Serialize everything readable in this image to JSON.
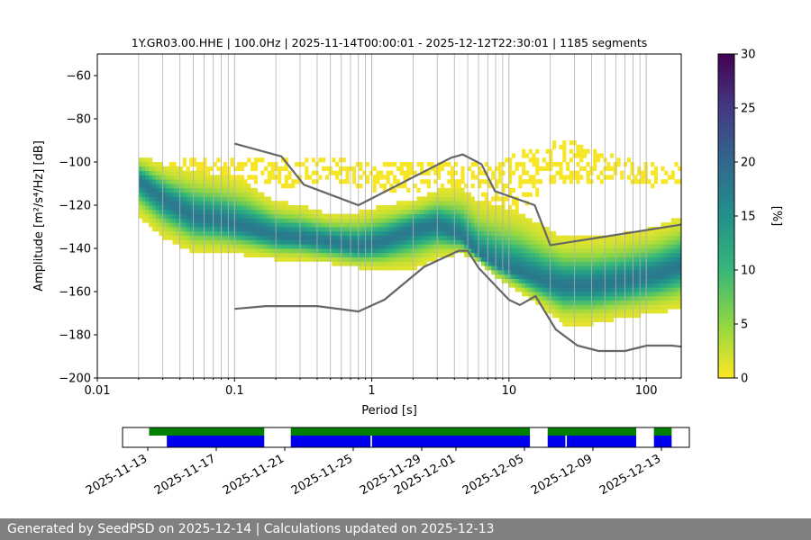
{
  "chart_data": [
    {
      "type": "heatmap",
      "title": "1Y.GR03.00.HHE | 100.0Hz | 2025-11-14T00:00:01 - 2025-12-12T22:30:01 | 1185 segments",
      "xlabel": "Period [s]",
      "ylabel": "Amplitude [m²/s⁴/Hz] [dB]",
      "x_scale": "log",
      "xlim": [
        0.01,
        180
      ],
      "ylim": [
        -200,
        -50
      ],
      "x_ticks": [
        0.01,
        0.1,
        1,
        10,
        100
      ],
      "x_tick_labels": [
        "0.01",
        "0.1",
        "1",
        "10",
        "100"
      ],
      "y_ticks": [
        -200,
        -180,
        -160,
        -140,
        -120,
        -100,
        -80,
        -60
      ],
      "y_tick_labels": [
        "−200",
        "−180",
        "−160",
        "−140",
        "−120",
        "−100",
        "−80",
        "−60"
      ],
      "grid": "x-major-and-minor",
      "colorbar": {
        "label": "[%]",
        "range": [
          0,
          30
        ],
        "ticks": [
          0,
          5,
          10,
          15,
          20,
          25,
          30
        ],
        "tick_labels": [
          "0",
          "5",
          "10",
          "15",
          "20",
          "25",
          "30"
        ],
        "colormap": [
          "#fde725",
          "#90d743",
          "#35b779",
          "#21918c",
          "#31688e",
          "#443983",
          "#440154"
        ]
      },
      "mode_curve": {
        "x": [
          0.02,
          0.03,
          0.05,
          0.08,
          0.12,
          0.2,
          0.3,
          0.5,
          0.8,
          1.2,
          2,
          3,
          4.5,
          6,
          8,
          12,
          18,
          25,
          40,
          70,
          120,
          180
        ],
        "y": [
          -108,
          -117,
          -125,
          -127,
          -130,
          -134,
          -135,
          -137,
          -139,
          -137,
          -131,
          -129,
          -134,
          -143,
          -147,
          -151,
          -155,
          -157,
          -157,
          -155,
          -152,
          -148
        ]
      },
      "density_band": {
        "x": [
          0.02,
          0.03,
          0.05,
          0.08,
          0.12,
          0.2,
          0.3,
          0.5,
          0.8,
          1.2,
          2,
          3,
          4.5,
          6,
          8,
          12,
          18,
          25,
          40,
          70,
          120,
          180
        ],
        "low": [
          -125,
          -135,
          -142,
          -142,
          -143,
          -145,
          -145,
          -147,
          -149,
          -150,
          -150,
          -145,
          -142,
          -146,
          -153,
          -160,
          -168,
          -175,
          -175,
          -172,
          -170,
          -168
        ],
        "high": [
          -97,
          -101,
          -104,
          -106,
          -109,
          -118,
          -120,
          -124,
          -123,
          -120,
          -118,
          -113,
          -112,
          -118,
          -120,
          -123,
          -130,
          -135,
          -135,
          -133,
          -130,
          -125
        ]
      },
      "sparse_outliers": {
        "x": [
          0.025,
          0.03,
          0.06,
          0.1,
          0.15,
          0.3,
          0.5,
          0.8,
          1.5,
          3,
          6,
          8,
          12,
          18,
          22,
          30,
          40,
          60,
          90,
          130,
          170
        ],
        "low": [
          -115,
          -115,
          -112,
          -112,
          -110,
          -112,
          -108,
          -112,
          -115,
          -112,
          -112,
          -125,
          -128,
          -110,
          -110,
          -110,
          -110,
          -108,
          -110,
          -112,
          -112
        ],
        "high": [
          -100,
          -100,
          -98,
          -97,
          -98,
          -98,
          -98,
          -100,
          -100,
          -100,
          -100,
          -102,
          -94,
          -92,
          -89,
          -91,
          -94,
          -97,
          -100,
          -100,
          -100
        ]
      },
      "noise_models": [
        {
          "x": [
            0.1,
            0.22,
            0.32,
            0.8,
            3.8,
            4.6,
            6.3,
            7.9,
            15.4,
            20,
            180
          ],
          "y": [
            -91.5,
            -97.4,
            -110.5,
            -120,
            -98,
            -96.5,
            -101,
            -113.5,
            -120,
            -138.5,
            -129
          ]
        },
        {
          "x": [
            0.1,
            0.17,
            0.4,
            0.8,
            1.24,
            2.4,
            4.3,
            5,
            6,
            10,
            12,
            15.6,
            21.9,
            31.6,
            45,
            70,
            101,
            154,
            180
          ],
          "y": [
            -168,
            -166.7,
            -166.7,
            -169.2,
            -163.7,
            -148.6,
            -141.1,
            -141.1,
            -149,
            -163.8,
            -166.2,
            -162.1,
            -177.5,
            -185,
            -187.5,
            -187.5,
            -185,
            -185,
            -185.5
          ]
        }
      ]
    },
    {
      "type": "timeline",
      "x_tick_labels": [
        "2025-11-13",
        "2025-11-17",
        "2025-11-21",
        "2025-11-25",
        "2025-11-29",
        "2025-12-01",
        "2025-12-05",
        "2025-12-09",
        "2025-12-13"
      ],
      "date_range": [
        "2025-11-12T00:00",
        "2025-12-14T00:00"
      ],
      "green_segments": [
        [
          "2025-11-13T12:00",
          "2025-11-20T00:00"
        ],
        [
          "2025-11-21T12:00",
          "2025-12-05T00:00"
        ],
        [
          "2025-12-06T00:00",
          "2025-12-11T00:00"
        ],
        [
          "2025-12-12T00:00",
          "2025-12-13T00:00"
        ]
      ],
      "blue_segments": [
        [
          "2025-11-14T12:00",
          "2025-11-20T00:00"
        ],
        [
          "2025-11-21T12:00",
          "2025-11-26T00:00"
        ],
        [
          "2025-11-26T02:00",
          "2025-12-05T00:00"
        ],
        [
          "2025-12-06T00:00",
          "2025-12-07T00:00"
        ],
        [
          "2025-12-07T02:00",
          "2025-12-11T00:00"
        ],
        [
          "2025-12-12T00:00",
          "2025-12-13T00:00"
        ]
      ]
    }
  ],
  "footer": {
    "text": "Generated by SeedPSD on 2025-12-14 | Calculations updated on 2025-12-13"
  }
}
